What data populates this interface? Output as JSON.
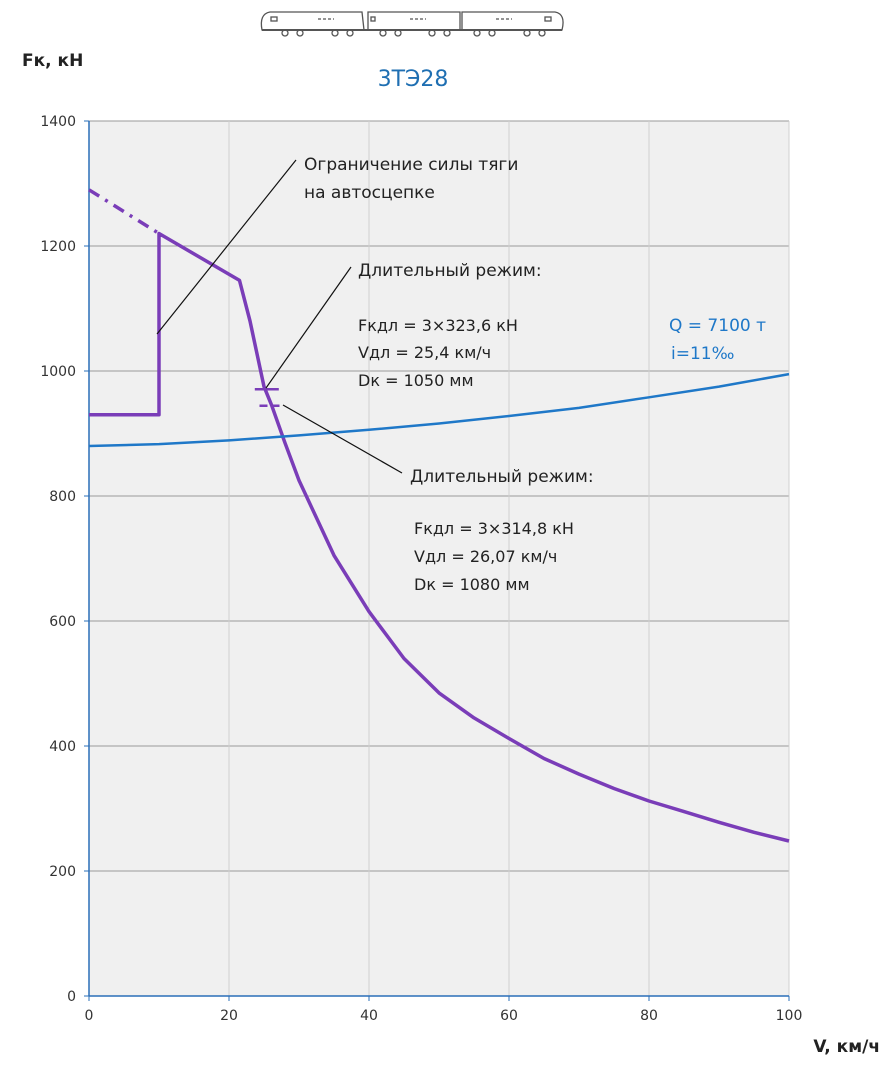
{
  "chart_data": {
    "type": "line",
    "title": "3ТЭ28",
    "xlabel": "V, км/ч",
    "ylabel": "Fк, кН",
    "xlim": [
      0,
      100
    ],
    "ylim": [
      0,
      1400
    ],
    "x_ticks": [
      "0",
      "20",
      "40",
      "60",
      "80",
      "100"
    ],
    "y_ticks": [
      "0",
      "200",
      "400",
      "600",
      "800",
      "1000",
      "1200",
      "1400"
    ],
    "grid": true,
    "colors": {
      "traction": "#7a3db8",
      "resistance": "#1f78c8",
      "title": "#1f6fb2"
    },
    "series": [
      {
        "key": "traction",
        "points": [
          [
            0,
            930
          ],
          [
            10,
            930
          ],
          [
            10,
            1220
          ],
          [
            21.5,
            1145
          ],
          [
            23,
            1080
          ],
          [
            25,
            975
          ],
          [
            26.1,
            945
          ],
          [
            28,
            885
          ],
          [
            30,
            825
          ],
          [
            35,
            705
          ],
          [
            40,
            615
          ],
          [
            45,
            540
          ],
          [
            50,
            485
          ],
          [
            55,
            445
          ],
          [
            60,
            412
          ],
          [
            65,
            380
          ],
          [
            70,
            355
          ],
          [
            75,
            332
          ],
          [
            80,
            312
          ],
          [
            85,
            295
          ],
          [
            90,
            278
          ],
          [
            95,
            262
          ],
          [
            100,
            248
          ]
        ]
      },
      {
        "key": "traction_extension",
        "style": "dash-dot",
        "points": [
          [
            0,
            1290
          ],
          [
            10,
            1220
          ]
        ]
      },
      {
        "key": "resistance",
        "points": [
          [
            0,
            880
          ],
          [
            10,
            883
          ],
          [
            20,
            889
          ],
          [
            30,
            897
          ],
          [
            40,
            906
          ],
          [
            50,
            916
          ],
          [
            60,
            928
          ],
          [
            70,
            941
          ],
          [
            80,
            958
          ],
          [
            90,
            975
          ],
          [
            100,
            995
          ]
        ]
      }
    ],
    "markers": [
      {
        "key": "mode1",
        "x": 25.4,
        "y": 970.8,
        "style": "solid"
      },
      {
        "key": "mode2",
        "x": 26.07,
        "y": 944.4,
        "style": "dashed"
      }
    ],
    "annotations": {
      "limit_line1": "Ограничение силы тяги",
      "limit_line2": "на автосцепке",
      "mode1_title": "Длительный режим:",
      "mode1_f": "Fкдл = 3×323,6 кН",
      "mode1_v": "Vдл = 25,4 км/ч",
      "mode1_d": "Dк = 1050 мм",
      "mode2_title": "Длительный режим:",
      "mode2_f": "Fкдл = 3×314,8 кН",
      "mode2_v": "Vдл = 26,07 км/ч",
      "mode2_d": "Dк = 1080 мм",
      "q": "Q = 7100 т",
      "i": "i=11‰"
    }
  }
}
